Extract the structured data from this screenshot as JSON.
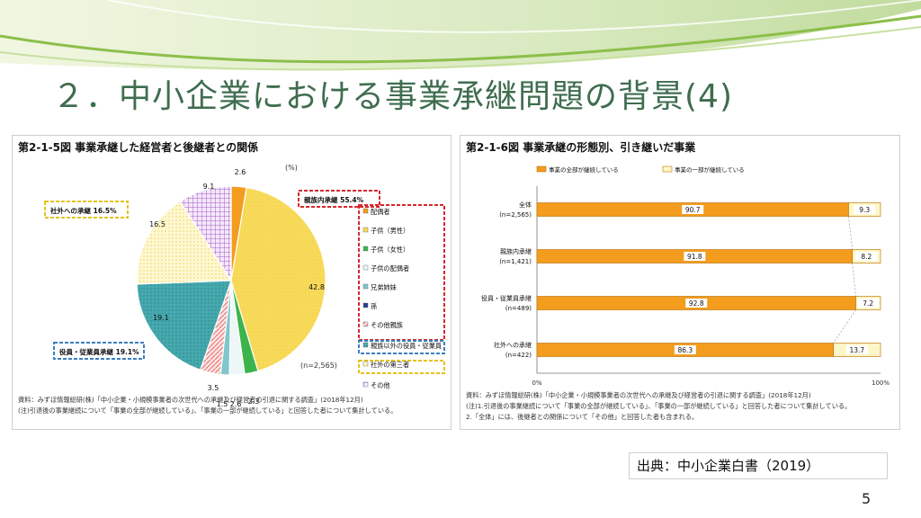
{
  "slide": {
    "title": "２．中小企業における事業承継問題の背景(4)",
    "source": "出典：中小企業白書（2019）",
    "page_number": "5"
  },
  "colors": {
    "title_green": "#3f6d4f",
    "orange": "#f39c1e",
    "yellow": "#f7d54d",
    "teal": "#3aa2a8",
    "pink": "#e86a6a",
    "purple": "#a45ec4",
    "red_dashed": "#d7282f",
    "blue_dashed": "#3a7fc1",
    "yellow_dashed": "#e6c21a"
  },
  "chart_data": [
    {
      "type": "pie",
      "title": "第2-1-5図 事業承継した経営者と後継者との関係",
      "unit": "(%)",
      "sample": "(n=2,565)",
      "slices": [
        {
          "name": "配偶者",
          "value": 2.6,
          "color": "#f39c1e"
        },
        {
          "name": "子供（男性）",
          "value": 42.8,
          "color": "#f7d54d"
        },
        {
          "name": "子供（女性）",
          "value": 2.3,
          "color": "#3cb44b"
        },
        {
          "name": "子供の配偶者",
          "value": 2.6,
          "color": "#e8f4f4"
        },
        {
          "name": "兄弟姉妹",
          "value": 1.5,
          "color": "#3aa2a8"
        },
        {
          "name": "孫",
          "value": 0.0,
          "color": "#2b3f8f"
        },
        {
          "name": "その他親族",
          "value": 3.5,
          "color": "#e86a6a"
        },
        {
          "name": "親族以外の役員・従業員",
          "value": 19.1,
          "color": "#3aa2a8"
        },
        {
          "name": "社外の第三者",
          "value": 16.5,
          "color": "#fdf6c8"
        },
        {
          "name": "その他",
          "value": 9.1,
          "color": "#a45ec4"
        }
      ],
      "group_labels": [
        {
          "text": "親族内承継 55.4%",
          "color": "#d7282f"
        },
        {
          "text": "役員・従業員承継 19.1%",
          "color": "#3a7fc1"
        },
        {
          "text": "社外への承継 16.5%",
          "color": "#e6c21a"
        }
      ],
      "notes": [
        "資料：みずほ情報総研(株)「中小企業・小規模事業者の次世代への承継及び経営者の引退に関する調査」(2018年12月)",
        "(注)引退後の事業継続について「事業の全部が継続している」、「事業の一部が継続している」と回答した者について集計している。"
      ]
    },
    {
      "type": "bar",
      "stacked": true,
      "orientation": "horizontal",
      "title": "第2-1-6図 事業承継の形態別、引き継いだ事業",
      "categories": [
        "全体\n(n=2,565)",
        "親族内承継\n(n=1,421)",
        "役員・従業員承継\n(n=489)",
        "社外への承継\n(n=422)"
      ],
      "series": [
        {
          "name": "事業の全部が継続している",
          "values": [
            90.7,
            91.8,
            92.8,
            86.3
          ],
          "color": "#f39c1e"
        },
        {
          "name": "事業の一部が継続している",
          "values": [
            9.3,
            8.2,
            7.2,
            13.7
          ],
          "color": "#fdf6c8"
        }
      ],
      "xlim": [
        0,
        100
      ],
      "xticks": [
        "0%",
        "100%"
      ],
      "notes": [
        "資料：みずほ情報総研(株)「中小企業・小規模事業者の次世代への承継及び経営者の引退に関する調査」(2018年12月)",
        "(注)1.引退後の事業継続について「事業の全部が継続している」、「事業の一部が継続している」と回答した者について集計している。",
        "      2.「全体」には、後継者との関係について「その他」と回答した者も含まれる。"
      ]
    }
  ]
}
